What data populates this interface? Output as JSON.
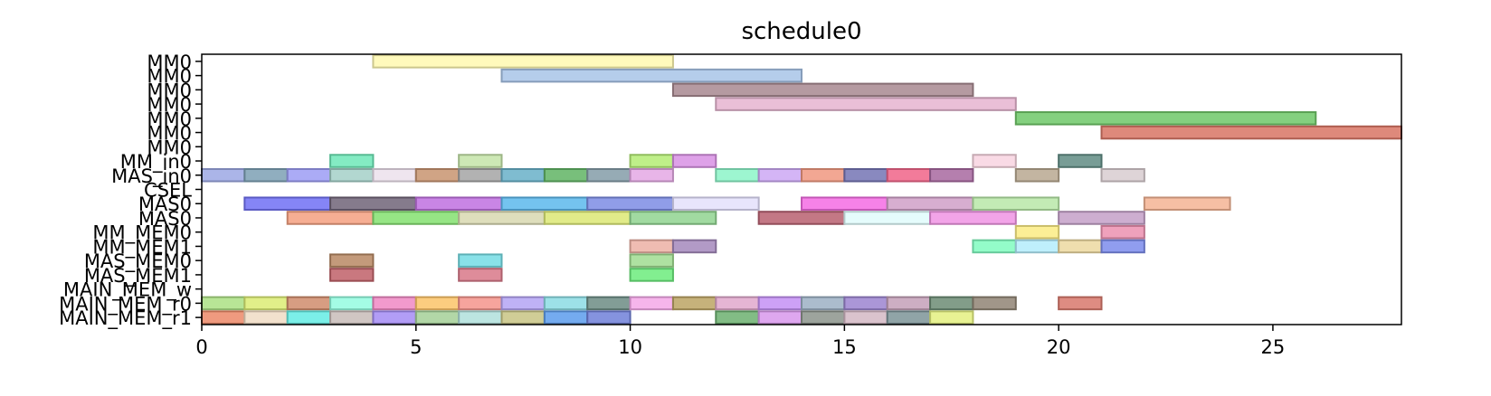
{
  "chart_data": {
    "type": "bar",
    "title": "schedule0",
    "xlabel": "",
    "ylabel": "",
    "xlim": [
      0,
      28
    ],
    "xticks": [
      0,
      5,
      10,
      15,
      20,
      25
    ],
    "grid": false,
    "rows": [
      "MM0",
      "MM0",
      "MM0",
      "MM0",
      "MM0",
      "MM0",
      "MM0",
      "MM_in0",
      "MAS_in0",
      "CSEL",
      "MAS0",
      "MAS0",
      "MM_MEM0",
      "MM_MEM1",
      "MAS_MEM0",
      "MAS_MEM1",
      "MAIN_MEM_w",
      "MAIN_MEM_r0",
      "MAIN_MEM_r1"
    ],
    "bars": [
      {
        "row": 0,
        "start": 4,
        "end": 11,
        "color": "#fff9b0"
      },
      {
        "row": 1,
        "start": 7,
        "end": 14,
        "color": "#a8c4e8"
      },
      {
        "row": 2,
        "start": 11,
        "end": 18,
        "color": "#a88890"
      },
      {
        "row": 3,
        "start": 12,
        "end": 19,
        "color": "#e6b4d0"
      },
      {
        "row": 4,
        "start": 19,
        "end": 26,
        "color": "#6fc868"
      },
      {
        "row": 5,
        "start": 21,
        "end": 28,
        "color": "#d87464"
      },
      {
        "row": 7,
        "start": 3,
        "end": 4,
        "color": "#6ee8b8"
      },
      {
        "row": 7,
        "start": 6,
        "end": 7,
        "color": "#c4e4a8"
      },
      {
        "row": 7,
        "start": 10,
        "end": 11,
        "color": "#b4ec74"
      },
      {
        "row": 7,
        "start": 11,
        "end": 12,
        "color": "#d890e4"
      },
      {
        "row": 7,
        "start": 18,
        "end": 19,
        "color": "#f8d4e0"
      },
      {
        "row": 7,
        "start": 20,
        "end": 21,
        "color": "#608c84"
      },
      {
        "row": 8,
        "start": 0,
        "end": 1,
        "color": "#9ca8e4"
      },
      {
        "row": 8,
        "start": 1,
        "end": 2,
        "color": "#7ca0b4"
      },
      {
        "row": 8,
        "start": 2,
        "end": 3,
        "color": "#9c9cf4"
      },
      {
        "row": 8,
        "start": 3,
        "end": 4,
        "color": "#a4d0c8"
      },
      {
        "row": 8,
        "start": 4,
        "end": 5,
        "color": "#ece0ec"
      },
      {
        "row": 8,
        "start": 5,
        "end": 6,
        "color": "#c89470"
      },
      {
        "row": 8,
        "start": 6,
        "end": 7,
        "color": "#a4a4a4"
      },
      {
        "row": 8,
        "start": 7,
        "end": 8,
        "color": "#68b0c8"
      },
      {
        "row": 8,
        "start": 8,
        "end": 9,
        "color": "#60b464"
      },
      {
        "row": 8,
        "start": 9,
        "end": 10,
        "color": "#849ca8"
      },
      {
        "row": 8,
        "start": 10,
        "end": 11,
        "color": "#e4a8e4"
      },
      {
        "row": 8,
        "start": 12,
        "end": 13,
        "color": "#8cf4c8"
      },
      {
        "row": 8,
        "start": 13,
        "end": 14,
        "color": "#cca8f4"
      },
      {
        "row": 8,
        "start": 14,
        "end": 15,
        "color": "#f09880"
      },
      {
        "row": 8,
        "start": 15,
        "end": 16,
        "color": "#7474b4"
      },
      {
        "row": 8,
        "start": 16,
        "end": 17,
        "color": "#f06488"
      },
      {
        "row": 8,
        "start": 17,
        "end": 18,
        "color": "#a868a0"
      },
      {
        "row": 8,
        "start": 19,
        "end": 20,
        "color": "#b8a890"
      },
      {
        "row": 8,
        "start": 21,
        "end": 22,
        "color": "#d8ccd0"
      },
      {
        "row": 10,
        "start": 1,
        "end": 3,
        "color": "#7070f4"
      },
      {
        "row": 10,
        "start": 3,
        "end": 5,
        "color": "#706478"
      },
      {
        "row": 10,
        "start": 5,
        "end": 7,
        "color": "#c070e0"
      },
      {
        "row": 10,
        "start": 7,
        "end": 9,
        "color": "#5cb8ec"
      },
      {
        "row": 10,
        "start": 9,
        "end": 11,
        "color": "#7c8ce4"
      },
      {
        "row": 10,
        "start": 11,
        "end": 13,
        "color": "#e4e0fc"
      },
      {
        "row": 10,
        "start": 14,
        "end": 16,
        "color": "#f46ce4"
      },
      {
        "row": 10,
        "start": 16,
        "end": 18,
        "color": "#d0a0c8"
      },
      {
        "row": 10,
        "start": 18,
        "end": 20,
        "color": "#b8e8a8"
      },
      {
        "row": 10,
        "start": 22,
        "end": 24,
        "color": "#f4b494"
      },
      {
        "row": 11,
        "start": 2,
        "end": 4,
        "color": "#f4a080"
      },
      {
        "row": 11,
        "start": 4,
        "end": 6,
        "color": "#84e070"
      },
      {
        "row": 11,
        "start": 6,
        "end": 8,
        "color": "#d8d8b0"
      },
      {
        "row": 11,
        "start": 8,
        "end": 10,
        "color": "#dce874"
      },
      {
        "row": 11,
        "start": 10,
        "end": 12,
        "color": "#90d490"
      },
      {
        "row": 11,
        "start": 13,
        "end": 15,
        "color": "#b86070"
      },
      {
        "row": 11,
        "start": 15,
        "end": 17,
        "color": "#e0fcfc"
      },
      {
        "row": 11,
        "start": 17,
        "end": 19,
        "color": "#f094e4"
      },
      {
        "row": 11,
        "start": 20,
        "end": 22,
        "color": "#c4a0c8"
      },
      {
        "row": 12,
        "start": 19,
        "end": 20,
        "color": "#fcec84"
      },
      {
        "row": 12,
        "start": 21,
        "end": 22,
        "color": "#ec90b0"
      },
      {
        "row": 13,
        "start": 10,
        "end": 11,
        "color": "#ecb0a4"
      },
      {
        "row": 13,
        "start": 11,
        "end": 12,
        "color": "#a488bc"
      },
      {
        "row": 13,
        "start": 18,
        "end": 19,
        "color": "#80fcc0"
      },
      {
        "row": 13,
        "start": 19,
        "end": 20,
        "color": "#b4ecfc"
      },
      {
        "row": 13,
        "start": 20,
        "end": 21,
        "color": "#ecd8a0"
      },
      {
        "row": 13,
        "start": 21,
        "end": 22,
        "color": "#7c8cec"
      },
      {
        "row": 14,
        "start": 3,
        "end": 4,
        "color": "#b88864"
      },
      {
        "row": 14,
        "start": 6,
        "end": 7,
        "color": "#74dce4"
      },
      {
        "row": 14,
        "start": 10,
        "end": 11,
        "color": "#a0dc90"
      },
      {
        "row": 15,
        "start": 3,
        "end": 4,
        "color": "#c06068"
      },
      {
        "row": 15,
        "start": 6,
        "end": 7,
        "color": "#d87888"
      },
      {
        "row": 15,
        "start": 10,
        "end": 11,
        "color": "#6cec7c"
      },
      {
        "row": 17,
        "start": 0,
        "end": 1,
        "color": "#ace084"
      },
      {
        "row": 17,
        "start": 1,
        "end": 2,
        "color": "#dcec74"
      },
      {
        "row": 17,
        "start": 2,
        "end": 3,
        "color": "#d08c6c"
      },
      {
        "row": 17,
        "start": 3,
        "end": 4,
        "color": "#94fce0"
      },
      {
        "row": 17,
        "start": 4,
        "end": 5,
        "color": "#f088c4"
      },
      {
        "row": 17,
        "start": 5,
        "end": 6,
        "color": "#fcc468"
      },
      {
        "row": 17,
        "start": 6,
        "end": 7,
        "color": "#f4948c"
      },
      {
        "row": 17,
        "start": 7,
        "end": 8,
        "color": "#b4a4f4"
      },
      {
        "row": 17,
        "start": 8,
        "end": 9,
        "color": "#8cdce4"
      },
      {
        "row": 17,
        "start": 9,
        "end": 10,
        "color": "#6c8c84"
      },
      {
        "row": 17,
        "start": 10,
        "end": 11,
        "color": "#f4a8e8"
      },
      {
        "row": 17,
        "start": 11,
        "end": 12,
        "color": "#bca464"
      },
      {
        "row": 17,
        "start": 12,
        "end": 13,
        "color": "#e0a8cc"
      },
      {
        "row": 17,
        "start": 13,
        "end": 14,
        "color": "#c490f4"
      },
      {
        "row": 17,
        "start": 14,
        "end": 15,
        "color": "#9cb0c4"
      },
      {
        "row": 17,
        "start": 15,
        "end": 16,
        "color": "#9c84d0"
      },
      {
        "row": 17,
        "start": 16,
        "end": 17,
        "color": "#c4a0b8"
      },
      {
        "row": 17,
        "start": 17,
        "end": 18,
        "color": "#6c8c74"
      },
      {
        "row": 17,
        "start": 18,
        "end": 19,
        "color": "#908474"
      },
      {
        "row": 17,
        "start": 20,
        "end": 21,
        "color": "#d8786c"
      },
      {
        "row": 18,
        "start": 0,
        "end": 1,
        "color": "#ec8868"
      },
      {
        "row": 18,
        "start": 1,
        "end": 2,
        "color": "#f0dcc4"
      },
      {
        "row": 18,
        "start": 2,
        "end": 3,
        "color": "#64ece4"
      },
      {
        "row": 18,
        "start": 3,
        "end": 4,
        "color": "#c8bcb8"
      },
      {
        "row": 18,
        "start": 4,
        "end": 5,
        "color": "#a48cf4"
      },
      {
        "row": 18,
        "start": 5,
        "end": 6,
        "color": "#a4d098"
      },
      {
        "row": 18,
        "start": 6,
        "end": 7,
        "color": "#b0e0dc"
      },
      {
        "row": 18,
        "start": 7,
        "end": 8,
        "color": "#c8c484"
      },
      {
        "row": 18,
        "start": 8,
        "end": 9,
        "color": "#5c9cec"
      },
      {
        "row": 18,
        "start": 9,
        "end": 10,
        "color": "#7080d8"
      },
      {
        "row": 18,
        "start": 12,
        "end": 13,
        "color": "#6cb070"
      },
      {
        "row": 18,
        "start": 13,
        "end": 14,
        "color": "#d898ec"
      },
      {
        "row": 18,
        "start": 14,
        "end": 15,
        "color": "#8c948c"
      },
      {
        "row": 18,
        "start": 15,
        "end": 16,
        "color": "#d4b8c4"
      },
      {
        "row": 18,
        "start": 16,
        "end": 17,
        "color": "#7c9498"
      },
      {
        "row": 18,
        "start": 17,
        "end": 18,
        "color": "#e4f080"
      }
    ]
  }
}
